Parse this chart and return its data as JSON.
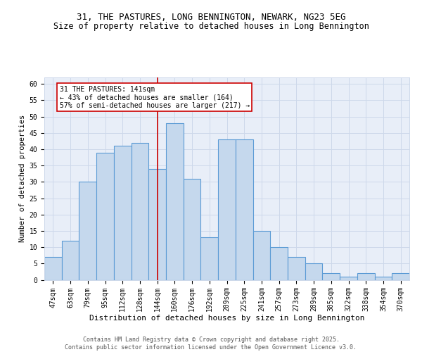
{
  "title_line1": "31, THE PASTURES, LONG BENNINGTON, NEWARK, NG23 5EG",
  "title_line2": "Size of property relative to detached houses in Long Bennington",
  "xlabel": "Distribution of detached houses by size in Long Bennington",
  "ylabel": "Number of detached properties",
  "categories": [
    "47sqm",
    "63sqm",
    "79sqm",
    "95sqm",
    "112sqm",
    "128sqm",
    "144sqm",
    "160sqm",
    "176sqm",
    "192sqm",
    "209sqm",
    "225sqm",
    "241sqm",
    "257sqm",
    "273sqm",
    "289sqm",
    "305sqm",
    "322sqm",
    "338sqm",
    "354sqm",
    "370sqm"
  ],
  "values": [
    7,
    12,
    30,
    39,
    41,
    42,
    34,
    48,
    31,
    13,
    43,
    43,
    15,
    10,
    7,
    5,
    2,
    1,
    2,
    1,
    2
  ],
  "bar_color": "#c5d8ed",
  "bar_edge_color": "#5b9bd5",
  "bar_edge_width": 0.8,
  "vline_x_index": 6,
  "vline_color": "#cc0000",
  "annotation_text": "31 THE PASTURES: 141sqm\n← 43% of detached houses are smaller (164)\n57% of semi-detached houses are larger (217) →",
  "annotation_box_color": "#cc0000",
  "annotation_fontsize": 7,
  "ylim": [
    0,
    62
  ],
  "yticks": [
    0,
    5,
    10,
    15,
    20,
    25,
    30,
    35,
    40,
    45,
    50,
    55,
    60
  ],
  "grid_color": "#cdd8ea",
  "background_color": "#e8eef8",
  "footer_text": "Contains HM Land Registry data © Crown copyright and database right 2025.\nContains public sector information licensed under the Open Government Licence v3.0.",
  "title_fontsize": 9,
  "subtitle_fontsize": 8.5,
  "xlabel_fontsize": 8,
  "ylabel_fontsize": 7.5,
  "tick_fontsize": 7,
  "footer_fontsize": 6
}
